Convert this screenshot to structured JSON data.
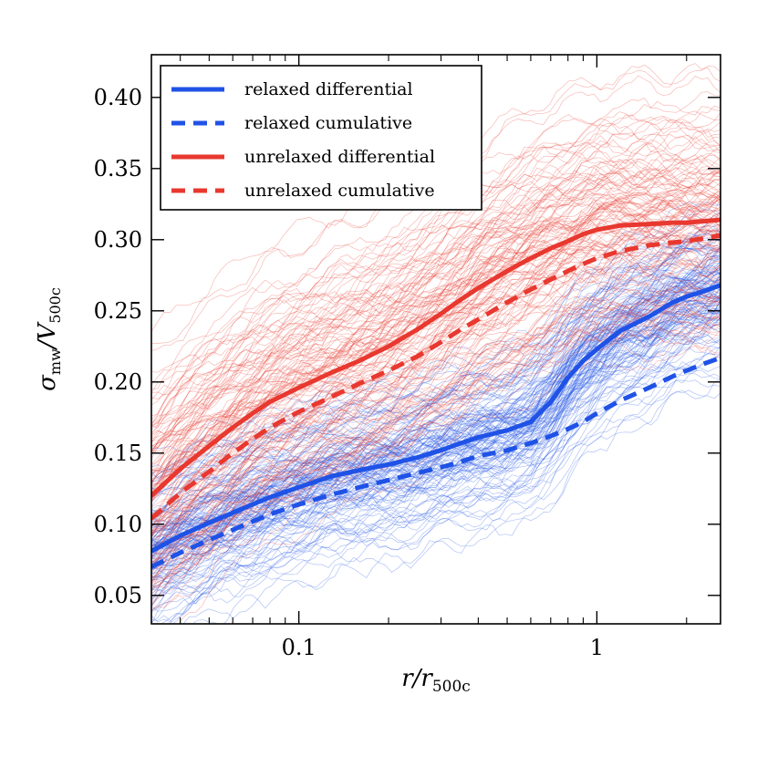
{
  "chart_data": {
    "type": "line",
    "xscale": "log",
    "xlim": [
      0.032,
      2.6
    ],
    "ylim": [
      0.03,
      0.43
    ],
    "xticks": [
      {
        "value": 0.1,
        "label": "0.1"
      },
      {
        "value": 1,
        "label": "1"
      }
    ],
    "yticks": [
      {
        "value": 0.05,
        "label": "0.05"
      },
      {
        "value": 0.1,
        "label": "0.10"
      },
      {
        "value": 0.15,
        "label": "0.15"
      },
      {
        "value": 0.2,
        "label": "0.20"
      },
      {
        "value": 0.25,
        "label": "0.25"
      },
      {
        "value": 0.3,
        "label": "0.30"
      },
      {
        "value": 0.35,
        "label": "0.35"
      },
      {
        "value": 0.4,
        "label": "0.40"
      }
    ],
    "xlabel": {
      "main": "r/r",
      "sub": "500c"
    },
    "ylabel": {
      "main": "σ",
      "sub1": "mw",
      "mid": "/V",
      "sub2": "500c"
    },
    "legend_position": "top-left",
    "colors": {
      "relaxed": "#1f52e6",
      "unrelaxed": "#e8382f"
    },
    "series": [
      {
        "name": "relaxed differential",
        "color": "#1f52e6",
        "style": "solid",
        "x": [
          0.032,
          0.04,
          0.05,
          0.06,
          0.07,
          0.08,
          0.1,
          0.13,
          0.16,
          0.2,
          0.25,
          0.3,
          0.35,
          0.4,
          0.5,
          0.6,
          0.7,
          0.8,
          0.9,
          1.0,
          1.2,
          1.5,
          1.8,
          2.0,
          2.3,
          2.6
        ],
        "y": [
          0.081,
          0.092,
          0.101,
          0.108,
          0.114,
          0.119,
          0.126,
          0.134,
          0.138,
          0.142,
          0.147,
          0.152,
          0.157,
          0.161,
          0.166,
          0.172,
          0.186,
          0.203,
          0.215,
          0.223,
          0.236,
          0.246,
          0.256,
          0.26,
          0.264,
          0.268
        ]
      },
      {
        "name": "relaxed cumulative",
        "color": "#1f52e6",
        "style": "dashed",
        "x": [
          0.032,
          0.04,
          0.05,
          0.06,
          0.07,
          0.08,
          0.1,
          0.13,
          0.16,
          0.2,
          0.25,
          0.3,
          0.35,
          0.4,
          0.5,
          0.6,
          0.7,
          0.8,
          0.9,
          1.0,
          1.2,
          1.5,
          1.8,
          2.0,
          2.3,
          2.6
        ],
        "y": [
          0.07,
          0.08,
          0.089,
          0.096,
          0.102,
          0.107,
          0.114,
          0.121,
          0.126,
          0.131,
          0.136,
          0.14,
          0.144,
          0.148,
          0.152,
          0.157,
          0.162,
          0.167,
          0.172,
          0.178,
          0.187,
          0.196,
          0.204,
          0.208,
          0.213,
          0.217
        ]
      },
      {
        "name": "unrelaxed differential",
        "color": "#e8382f",
        "style": "solid",
        "x": [
          0.032,
          0.04,
          0.05,
          0.06,
          0.07,
          0.08,
          0.1,
          0.13,
          0.16,
          0.2,
          0.25,
          0.3,
          0.35,
          0.4,
          0.5,
          0.6,
          0.7,
          0.8,
          0.9,
          1.0,
          1.2,
          1.5,
          1.8,
          2.0,
          2.3,
          2.6
        ],
        "y": [
          0.12,
          0.139,
          0.155,
          0.168,
          0.178,
          0.186,
          0.196,
          0.207,
          0.215,
          0.225,
          0.237,
          0.248,
          0.258,
          0.266,
          0.278,
          0.287,
          0.294,
          0.299,
          0.304,
          0.307,
          0.31,
          0.311,
          0.312,
          0.312,
          0.313,
          0.314
        ]
      },
      {
        "name": "unrelaxed cumulative",
        "color": "#e8382f",
        "style": "dashed",
        "x": [
          0.032,
          0.04,
          0.05,
          0.06,
          0.07,
          0.08,
          0.1,
          0.13,
          0.16,
          0.2,
          0.25,
          0.3,
          0.35,
          0.4,
          0.5,
          0.6,
          0.7,
          0.8,
          0.9,
          1.0,
          1.2,
          1.5,
          1.8,
          2.0,
          2.3,
          2.6
        ],
        "y": [
          0.104,
          0.122,
          0.137,
          0.15,
          0.16,
          0.168,
          0.179,
          0.19,
          0.199,
          0.208,
          0.218,
          0.228,
          0.237,
          0.244,
          0.256,
          0.265,
          0.272,
          0.278,
          0.283,
          0.287,
          0.292,
          0.296,
          0.298,
          0.299,
          0.301,
          0.303
        ]
      }
    ]
  }
}
